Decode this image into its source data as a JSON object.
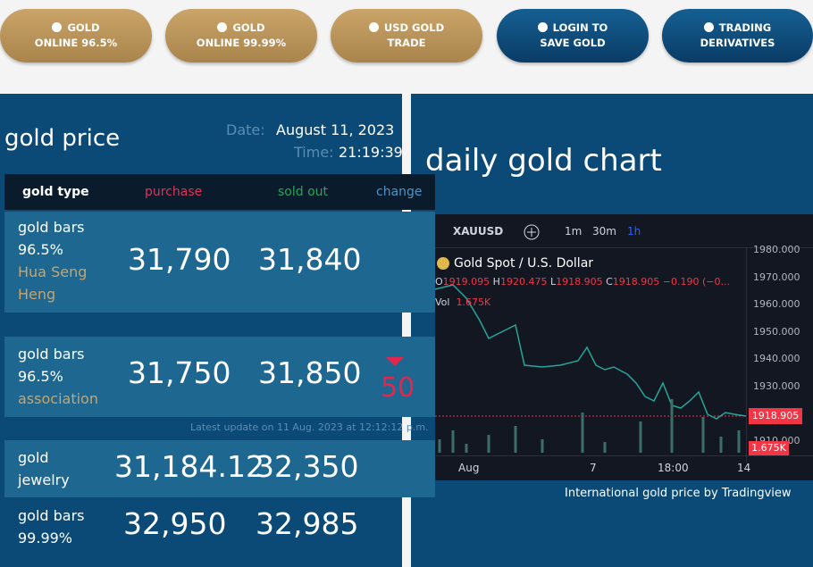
{
  "nav": [
    {
      "lines": [
        "GOLD",
        "ONLINE 96.5%"
      ]
    },
    {
      "lines": [
        "GOLD",
        "ONLINE 99.99%"
      ]
    },
    {
      "lines": [
        "USD GOLD",
        "TRADE"
      ]
    },
    {
      "lines": [
        "LOGIN TO",
        "SAVE GOLD"
      ]
    },
    {
      "lines": [
        "TRADING",
        "DERIVATIVES"
      ]
    }
  ],
  "gold_price": {
    "title": "gold price",
    "date_label": "Date:",
    "date": "August 11, 2023",
    "time_label": "Time:",
    "time": "21:19:39",
    "table": {
      "headers": [
        "gold type",
        "purchase",
        "sold out",
        "change"
      ],
      "rows": [
        {
          "type": [
            "gold bars",
            "96.5%"
          ],
          "source": [
            "Hua Seng",
            "Heng"
          ],
          "purchase": "31,790",
          "sold_out": "31,840"
        },
        {
          "type": [
            "gold bars",
            "96.5%"
          ],
          "source": [
            "association"
          ],
          "purchase": "31,750",
          "sold_out": "31,850",
          "change": "50"
        },
        {
          "type": [
            "gold",
            "jewelry"
          ],
          "purchase": "31,184.12",
          "sold_out": "32,350"
        },
        {
          "type": [
            "gold bars",
            "99.99%"
          ],
          "purchase": "32,950",
          "sold_out": "32,985"
        }
      ]
    },
    "update_note": "Latest update on 11 Aug. 2023 at 12:12:12 p.m."
  },
  "daily_chart": {
    "title": "daily gold chart",
    "widget": {
      "symbol": "XAUUSD",
      "intervals": [
        "1m",
        "30m",
        "1h"
      ],
      "instrument": "Gold Spot / U.S. Dollar",
      "ohlc": [
        [
          "O",
          "1919.095"
        ],
        [
          "H",
          "1920.475"
        ],
        [
          "L",
          "1918.905"
        ],
        [
          "C",
          "1918.905"
        ]
      ],
      "change": "−0.190 (−0...",
      "volume": [
        "Vol",
        "1.675K"
      ],
      "price_axis": [
        "1980.000",
        "1970.000",
        "1960.000",
        "1950.000",
        "1940.000",
        "1930.000",
        "1920.000",
        "1910.000"
      ],
      "last_price": "1918.905",
      "volume_tag": "1.675K",
      "time_axis": [
        "Aug",
        "7",
        "18:00",
        "14"
      ]
    },
    "caption": "International gold price by Tradingview"
  }
}
